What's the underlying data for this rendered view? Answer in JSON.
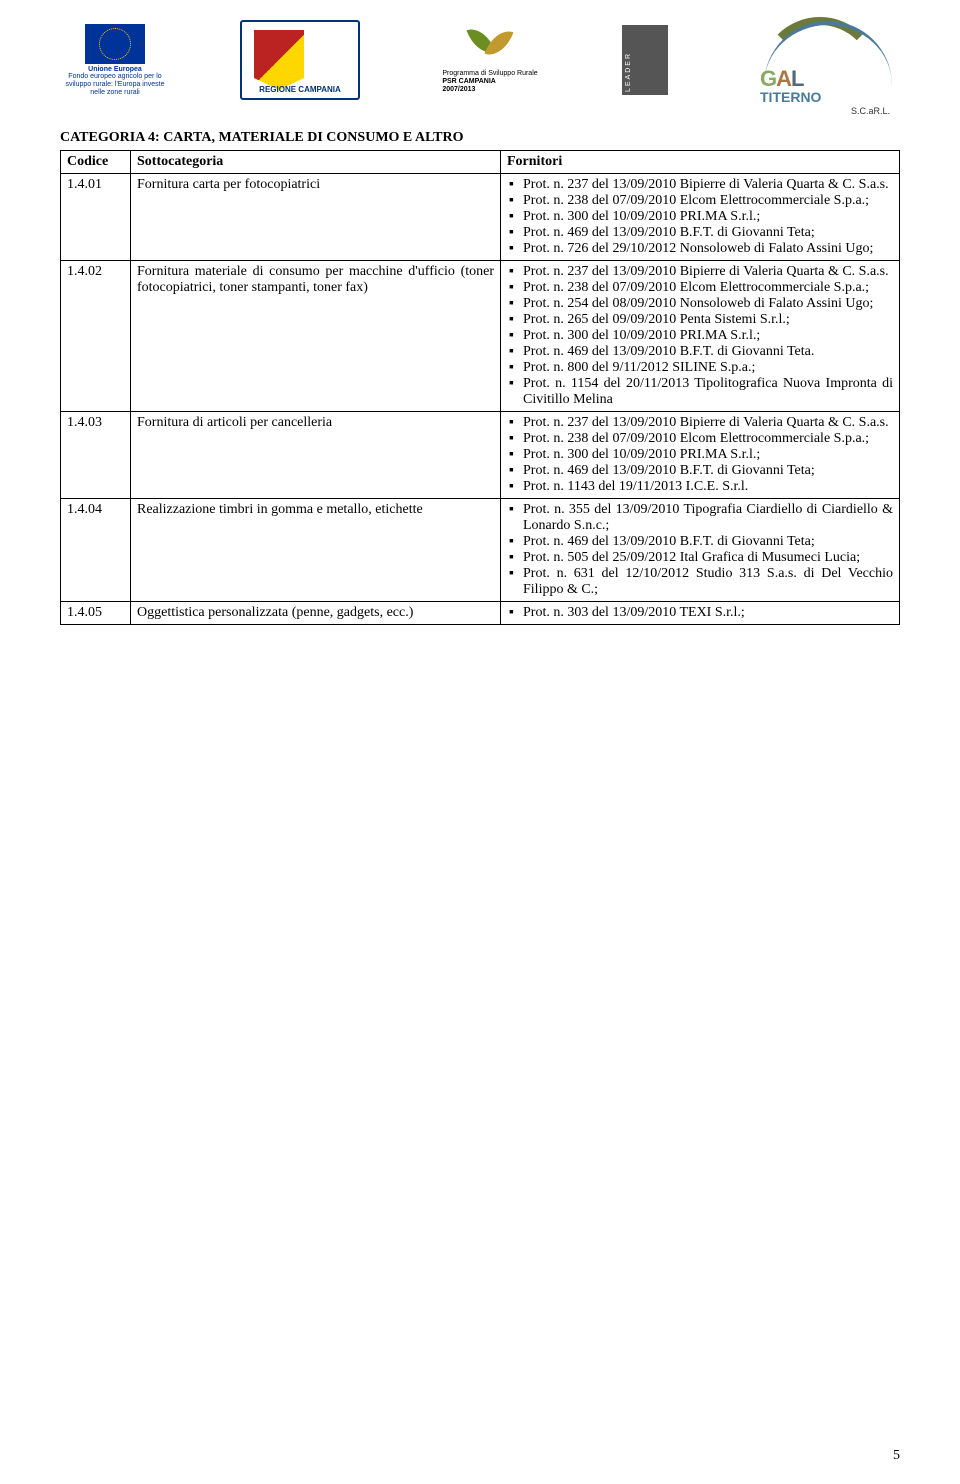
{
  "header": {
    "eu_line1": "Unione Europea",
    "eu_line2": "Fondo europeo agricolo per lo sviluppo rurale: l'Europa investe nelle zone rurali",
    "campania": "REGIONE CAMPANIA",
    "psr_line1": "Programma di Sviluppo Rurale",
    "psr_line2": "PSR CAMPANIA",
    "psr_line3": "2007/2013",
    "leader": "LEADER",
    "gal_main": "GAL",
    "gal_sub": "TITERNO",
    "gal_suffix": "S.C.aR.L."
  },
  "section_title": "CATEGORIA 4: CARTA, MATERIALE DI CONSUMO E ALTRO",
  "headers": {
    "col1": "Codice",
    "col2": "Sottocategoria",
    "col3": "Fornitori"
  },
  "rows": [
    {
      "code": "1.4.01",
      "desc": "Fornitura carta per fotocopiatrici",
      "items": [
        "Prot. n. 237 del 13/09/2010 Bipierre di Valeria Quarta & C. S.a.s.",
        "Prot. n. 238 del 07/09/2010 Elcom Elettrocommerciale S.p.a.;",
        "Prot. n. 300 del 10/09/2010  PRI.MA S.r.l.;",
        "Prot. n. 469 del 13/09/2010 B.F.T. di Giovanni Teta;",
        "Prot. n. 726 del 29/10/2012 Nonsoloweb di Falato Assini Ugo;"
      ]
    },
    {
      "code": "1.4.02",
      "desc": "Fornitura materiale di consumo per macchine d'ufficio (toner fotocopiatrici, toner stampanti, toner fax)",
      "items": [
        "Prot. n. 237 del 13/09/2010 Bipierre di Valeria Quarta & C. S.a.s.",
        "Prot. n. 238 del 07/09/2010 Elcom Elettrocommerciale S.p.a.;",
        "Prot. n. 254 del 08/09/2010 Nonsoloweb di Falato Assini Ugo;",
        "Prot. n. 265 del 09/09/2010 Penta Sistemi S.r.l.;",
        "Prot. n. 300 del 10/09/2010  PRI.MA S.r.l.;",
        "Prot. n. 469 del 13/09/2010 B.F.T. di Giovanni Teta.",
        "Prot. n. 800 del 9/11/2012 SILINE S.p.a.;",
        "Prot. n. 1154 del 20/11/2013 Tipolitografica Nuova Impronta di Civitillo Melina"
      ]
    },
    {
      "code": "1.4.03",
      "desc": "Fornitura di articoli per cancelleria",
      "items": [
        "Prot. n. 237 del 13/09/2010 Bipierre di Valeria Quarta & C. S.a.s.",
        "Prot. n. 238 del 07/09/2010 Elcom Elettrocommerciale S.p.a.;",
        "Prot. n. 300 del 10/09/2010 PRI.MA S.r.l.;",
        "Prot. n. 469 del 13/09/2010 B.F.T. di Giovanni Teta;",
        "Prot. n. 1143 del 19/11/2013 I.C.E. S.r.l."
      ]
    },
    {
      "code": "1.4.04",
      "desc": "Realizzazione timbri in gomma e metallo, etichette",
      "items": [
        "Prot. n. 355 del 13/09/2010 Tipografia Ciardiello di Ciardiello & Lonardo S.n.c.;",
        "Prot. n. 469 del 13/09/2010 B.F.T. di Giovanni Teta;",
        "Prot. n. 505 del 25/09/2012 Ital Grafica di Musumeci Lucia;",
        "Prot. n. 631 del 12/10/2012 Studio 313 S.a.s. di Del Vecchio Filippo & C.;"
      ]
    },
    {
      "code": "1.4.05",
      "desc": "Oggettistica personalizzata (penne, gadgets, ecc.)",
      "items": [
        "Prot. n. 303 del 13/09/2010 TEXI S.r.l.;"
      ]
    }
  ],
  "page_number": "5"
}
